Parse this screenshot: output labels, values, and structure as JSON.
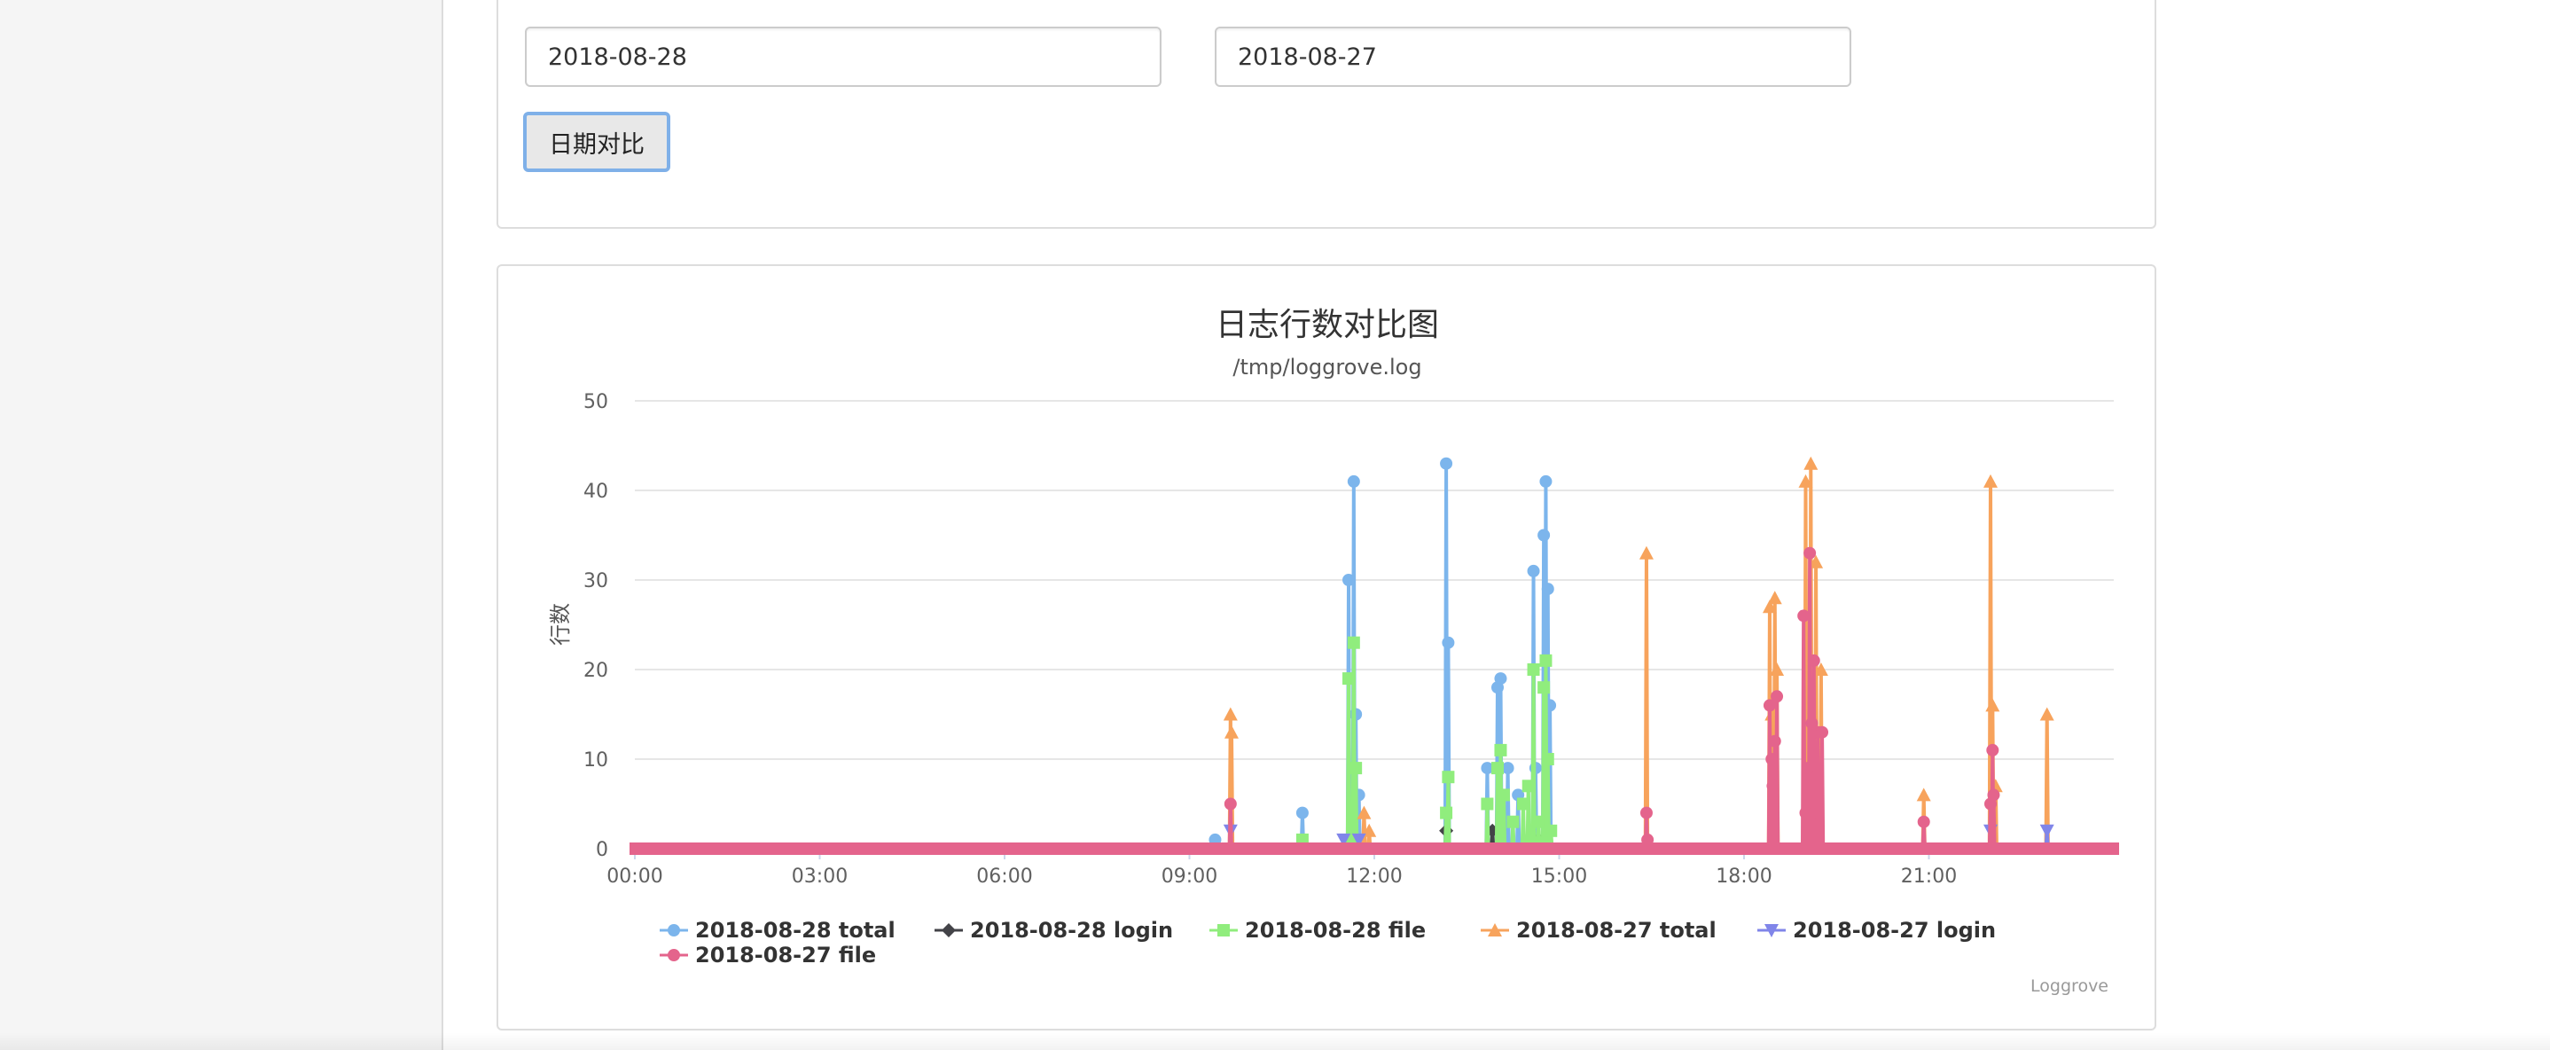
{
  "form": {
    "date1_value": "2018-08-28",
    "date2_value": "2018-08-27",
    "compare_label": "日期对比"
  },
  "chart_data": {
    "type": "line",
    "title": "日志行数对比图",
    "subtitle": "/tmp/loggrove.log",
    "xlabel": "",
    "ylabel": "行数",
    "ylim": [
      0,
      50
    ],
    "xlim": [
      "00:00",
      "24:00"
    ],
    "x_ticks": [
      "00:00",
      "03:00",
      "06:00",
      "09:00",
      "12:00",
      "15:00",
      "18:00",
      "21:00"
    ],
    "y_ticks": [
      0,
      10,
      20,
      30,
      40,
      50
    ],
    "grid": true,
    "legend_position": "bottom",
    "credits": "Loggrove",
    "series": [
      {
        "name": "2018-08-28 total",
        "color": "#7cb5ec",
        "marker": "circle",
        "points": [
          [
            "09:25",
            1
          ],
          [
            "10:50",
            4
          ],
          [
            "11:35",
            30
          ],
          [
            "11:40",
            41
          ],
          [
            "11:42",
            15
          ],
          [
            "11:45",
            6
          ],
          [
            "13:10",
            43
          ],
          [
            "13:12",
            23
          ],
          [
            "13:50",
            9
          ],
          [
            "14:00",
            18
          ],
          [
            "14:03",
            19
          ],
          [
            "14:10",
            9
          ],
          [
            "14:20",
            6
          ],
          [
            "14:35",
            31
          ],
          [
            "14:37",
            9
          ],
          [
            "14:45",
            35
          ],
          [
            "14:47",
            41
          ],
          [
            "14:49",
            29
          ],
          [
            "14:51",
            16
          ]
        ]
      },
      {
        "name": "2018-08-28 login",
        "color": "#434348",
        "marker": "diamond",
        "points": [
          [
            "13:10",
            2
          ],
          [
            "13:55",
            2
          ],
          [
            "14:40",
            1
          ]
        ]
      },
      {
        "name": "2018-08-28 file",
        "color": "#90ed7d",
        "marker": "square",
        "points": [
          [
            "10:50",
            1
          ],
          [
            "11:35",
            19
          ],
          [
            "11:40",
            23
          ],
          [
            "11:42",
            9
          ],
          [
            "13:10",
            4
          ],
          [
            "13:12",
            8
          ],
          [
            "13:50",
            5
          ],
          [
            "14:00",
            9
          ],
          [
            "14:03",
            11
          ],
          [
            "14:06",
            6
          ],
          [
            "14:15",
            3
          ],
          [
            "14:25",
            5
          ],
          [
            "14:30",
            7
          ],
          [
            "14:35",
            20
          ],
          [
            "14:40",
            3
          ],
          [
            "14:45",
            18
          ],
          [
            "14:47",
            21
          ],
          [
            "14:49",
            10
          ],
          [
            "14:52",
            2
          ]
        ]
      },
      {
        "name": "2018-08-27 total",
        "color": "#f7a35c",
        "marker": "triangle",
        "points": [
          [
            "09:40",
            15
          ],
          [
            "09:41",
            13
          ],
          [
            "11:50",
            4
          ],
          [
            "11:55",
            2
          ],
          [
            "16:25",
            33
          ],
          [
            "18:25",
            27
          ],
          [
            "18:27",
            15
          ],
          [
            "18:30",
            28
          ],
          [
            "18:32",
            20
          ],
          [
            "19:00",
            41
          ],
          [
            "19:05",
            43
          ],
          [
            "19:10",
            32
          ],
          [
            "19:15",
            20
          ],
          [
            "20:55",
            6
          ],
          [
            "22:00",
            41
          ],
          [
            "22:02",
            16
          ],
          [
            "22:05",
            7
          ],
          [
            "22:55",
            15
          ]
        ]
      },
      {
        "name": "2018-08-27 login",
        "color": "#8085e9",
        "marker": "triangle-down",
        "points": [
          [
            "09:40",
            2
          ],
          [
            "11:30",
            1
          ],
          [
            "11:45",
            1
          ],
          [
            "22:00",
            2
          ],
          [
            "22:55",
            2
          ]
        ]
      },
      {
        "name": "2018-08-27 file",
        "color": "#e4648c",
        "marker": "circle",
        "points": [
          [
            "09:40",
            5
          ],
          [
            "16:25",
            4
          ],
          [
            "16:26",
            1
          ],
          [
            "18:25",
            16
          ],
          [
            "18:27",
            10
          ],
          [
            "18:28",
            7
          ],
          [
            "18:30",
            12
          ],
          [
            "18:32",
            17
          ],
          [
            "18:58",
            26
          ],
          [
            "19:00",
            4
          ],
          [
            "19:02",
            9
          ],
          [
            "19:04",
            33
          ],
          [
            "19:06",
            14
          ],
          [
            "19:08",
            21
          ],
          [
            "19:10",
            4
          ],
          [
            "19:12",
            13
          ],
          [
            "19:16",
            13
          ],
          [
            "20:55",
            3
          ],
          [
            "22:00",
            5
          ],
          [
            "22:02",
            11
          ],
          [
            "22:03",
            6
          ]
        ]
      }
    ]
  }
}
